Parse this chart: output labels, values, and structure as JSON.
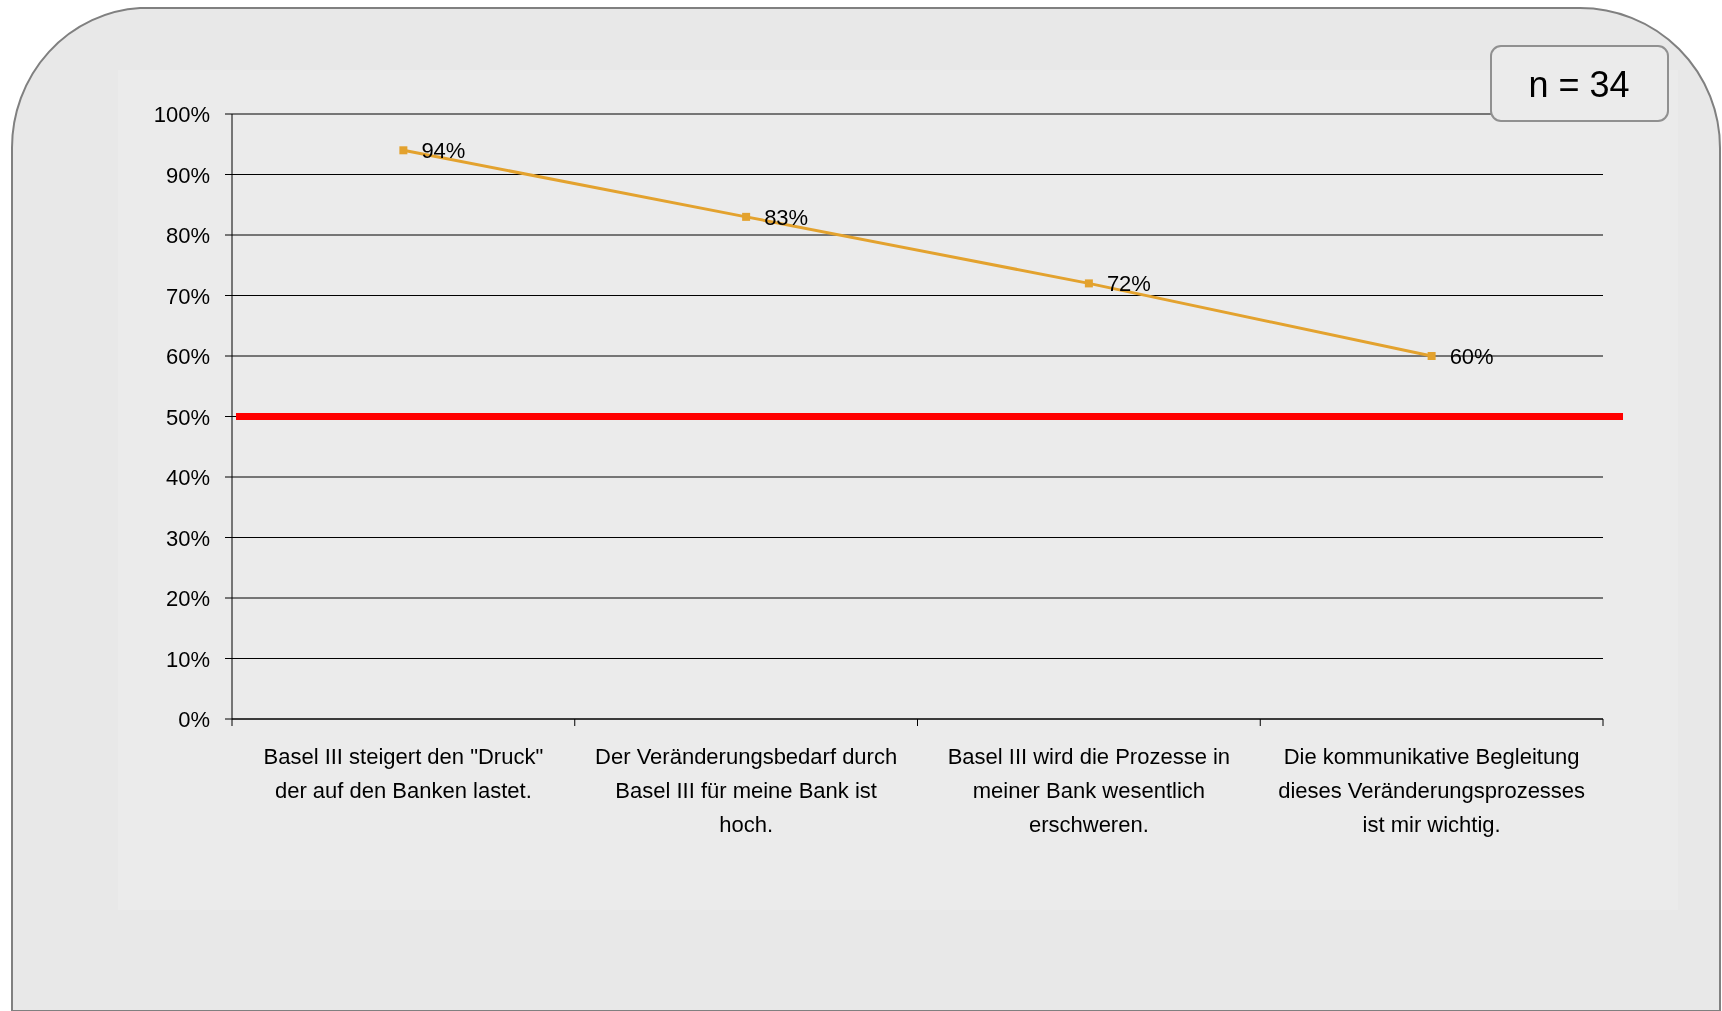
{
  "chart_data": {
    "type": "line",
    "categories": [
      "Basel III steigert den \"Druck\" der auf den Banken lastet.",
      "Der Veränderungsbedarf durch Basel III für meine Bank ist hoch.",
      "Basel III wird die Prozesse in meiner Bank wesentlich erschweren.",
      "Die kommunikative Begleitung dieses Veränderungsprozesses ist mir wichtig."
    ],
    "series": [
      {
        "color": "#e3a22e",
        "values": [
          94,
          83,
          72,
          60
        ]
      }
    ],
    "ylim": [
      0,
      100
    ],
    "yticks": [
      {
        "value": 0,
        "label": "0%"
      },
      {
        "value": 10,
        "label": "10%"
      },
      {
        "value": 20,
        "label": "20%"
      },
      {
        "value": 30,
        "label": "30%"
      },
      {
        "value": 40,
        "label": "40%"
      },
      {
        "value": 50,
        "label": "50%"
      },
      {
        "value": 60,
        "label": "60%"
      },
      {
        "value": 70,
        "label": "70%"
      },
      {
        "value": 80,
        "label": "80%"
      },
      {
        "value": 90,
        "label": "90%"
      },
      {
        "value": 100,
        "label": "100%"
      }
    ],
    "value_labels": [
      "94%",
      "83%",
      "72%",
      "60%"
    ],
    "ref_lines": [
      {
        "axis": "y",
        "value": 50,
        "color": "#ff0000"
      }
    ],
    "annotations": [
      "n = 34"
    ],
    "grid": "y",
    "marker": "square",
    "line_style": "solid"
  }
}
